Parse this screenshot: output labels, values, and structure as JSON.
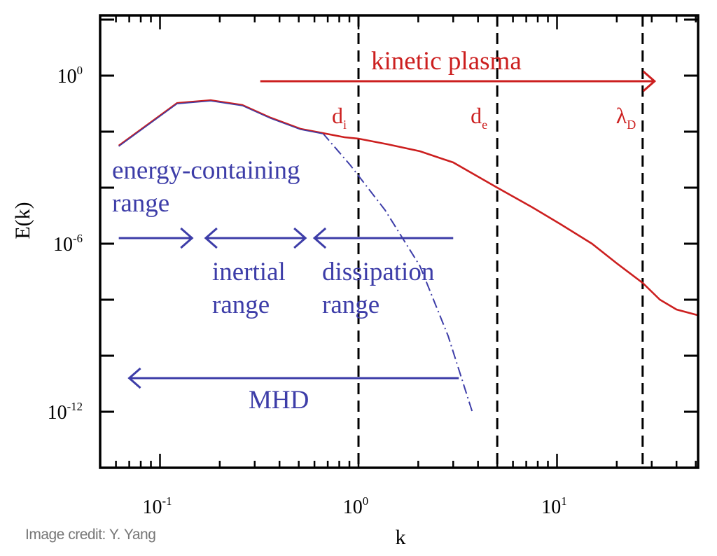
{
  "credit": "Image credit: Y. Yang",
  "chart_data": {
    "type": "line",
    "xlabel": "k",
    "ylabel": "E(k)",
    "xscale": "log",
    "yscale": "log",
    "xlim": [
      0.05,
      51
    ],
    "ylim_log10": [
      -14,
      2.15
    ],
    "x_tick_labels": [
      {
        "value": 0.1,
        "base": "10",
        "exp": "-1"
      },
      {
        "value": 1,
        "base": "10",
        "exp": "0"
      },
      {
        "value": 10,
        "base": "10",
        "exp": "1"
      }
    ],
    "y_tick_labels": [
      {
        "log10": 0,
        "base": "10",
        "exp": "0"
      },
      {
        "log10": -6,
        "base": "10",
        "exp": "-6"
      },
      {
        "log10": -12,
        "base": "10",
        "exp": "-12"
      }
    ],
    "y_major_ticks_log10": [
      2,
      0,
      -2,
      -4,
      -6,
      -8,
      -10,
      -12
    ],
    "grid": false,
    "colors": {
      "kinetic": "#cc1f1f",
      "mhd": "#3d3da8",
      "axis": "#000000"
    },
    "series": [
      {
        "style": "solid red (blue overlay at low k)",
        "points": [
          {
            "k": 0.062,
            "log10E": -2.5
          },
          {
            "k": 0.122,
            "log10E": -0.98
          },
          {
            "k": 0.18,
            "log10E": -0.88
          },
          {
            "k": 0.26,
            "log10E": -1.05
          },
          {
            "k": 0.36,
            "log10E": -1.5
          },
          {
            "k": 0.51,
            "log10E": -1.9
          },
          {
            "k": 0.66,
            "log10E": -2.05
          },
          {
            "k": 0.85,
            "log10E": -2.2
          },
          {
            "k": 1.0,
            "log10E": -2.25
          },
          {
            "k": 1.4,
            "log10E": -2.45
          },
          {
            "k": 2.04,
            "log10E": -2.7
          },
          {
            "k": 3.0,
            "log10E": -3.1
          },
          {
            "k": 5.0,
            "log10E": -4.0
          },
          {
            "k": 7.5,
            "log10E": -4.7
          },
          {
            "k": 10.4,
            "log10E": -5.3
          },
          {
            "k": 15,
            "log10E": -6.0
          },
          {
            "k": 20,
            "log10E": -6.7
          },
          {
            "k": 27,
            "log10E": -7.4
          },
          {
            "k": 33,
            "log10E": -8.0
          },
          {
            "k": 40,
            "log10E": -8.35
          },
          {
            "k": 51,
            "log10E": -8.55
          }
        ]
      },
      {
        "style": "dash-dot blue",
        "points": [
          {
            "k": 0.66,
            "log10E": -2.05
          },
          {
            "k": 0.91,
            "log10E": -3.2
          },
          {
            "k": 1.36,
            "log10E": -4.8
          },
          {
            "k": 2.04,
            "log10E": -6.8
          },
          {
            "k": 2.83,
            "log10E": -9.3
          },
          {
            "k": 3.76,
            "log10E": -12.05
          }
        ]
      }
    ],
    "vlines": [
      {
        "k": 1.0,
        "label": "d",
        "sub": "i"
      },
      {
        "k": 5.0,
        "label": "d",
        "sub": "e"
      },
      {
        "k": 27,
        "label": "λ",
        "sub": "D"
      }
    ],
    "annotations": [
      {
        "text": "kinetic plasma",
        "color": "kinetic",
        "arrow": {
          "from_k": 0.32,
          "to_k": 31,
          "log10E": -0.2,
          "heads": "right"
        }
      },
      {
        "text": "energy-containing",
        "text2": "range",
        "color": "mhd",
        "arrow": {
          "from_k": 0.062,
          "to_k": 0.145,
          "log10E": -5.8,
          "heads": "right"
        }
      },
      {
        "text": "inertial",
        "text2": "range",
        "color": "mhd",
        "arrow": {
          "from_k": 0.17,
          "to_k": 0.54,
          "log10E": -5.8,
          "heads": "both"
        }
      },
      {
        "text": "dissipation",
        "text2": "range",
        "color": "mhd",
        "arrow": {
          "from_k": 0.6,
          "to_k": 3.0,
          "log10E": -5.8,
          "heads": "left"
        }
      },
      {
        "text": "MHD",
        "color": "mhd",
        "arrow": {
          "from_k": 0.07,
          "to_k": 3.2,
          "log10E": -10.8,
          "heads": "left"
        }
      }
    ]
  }
}
